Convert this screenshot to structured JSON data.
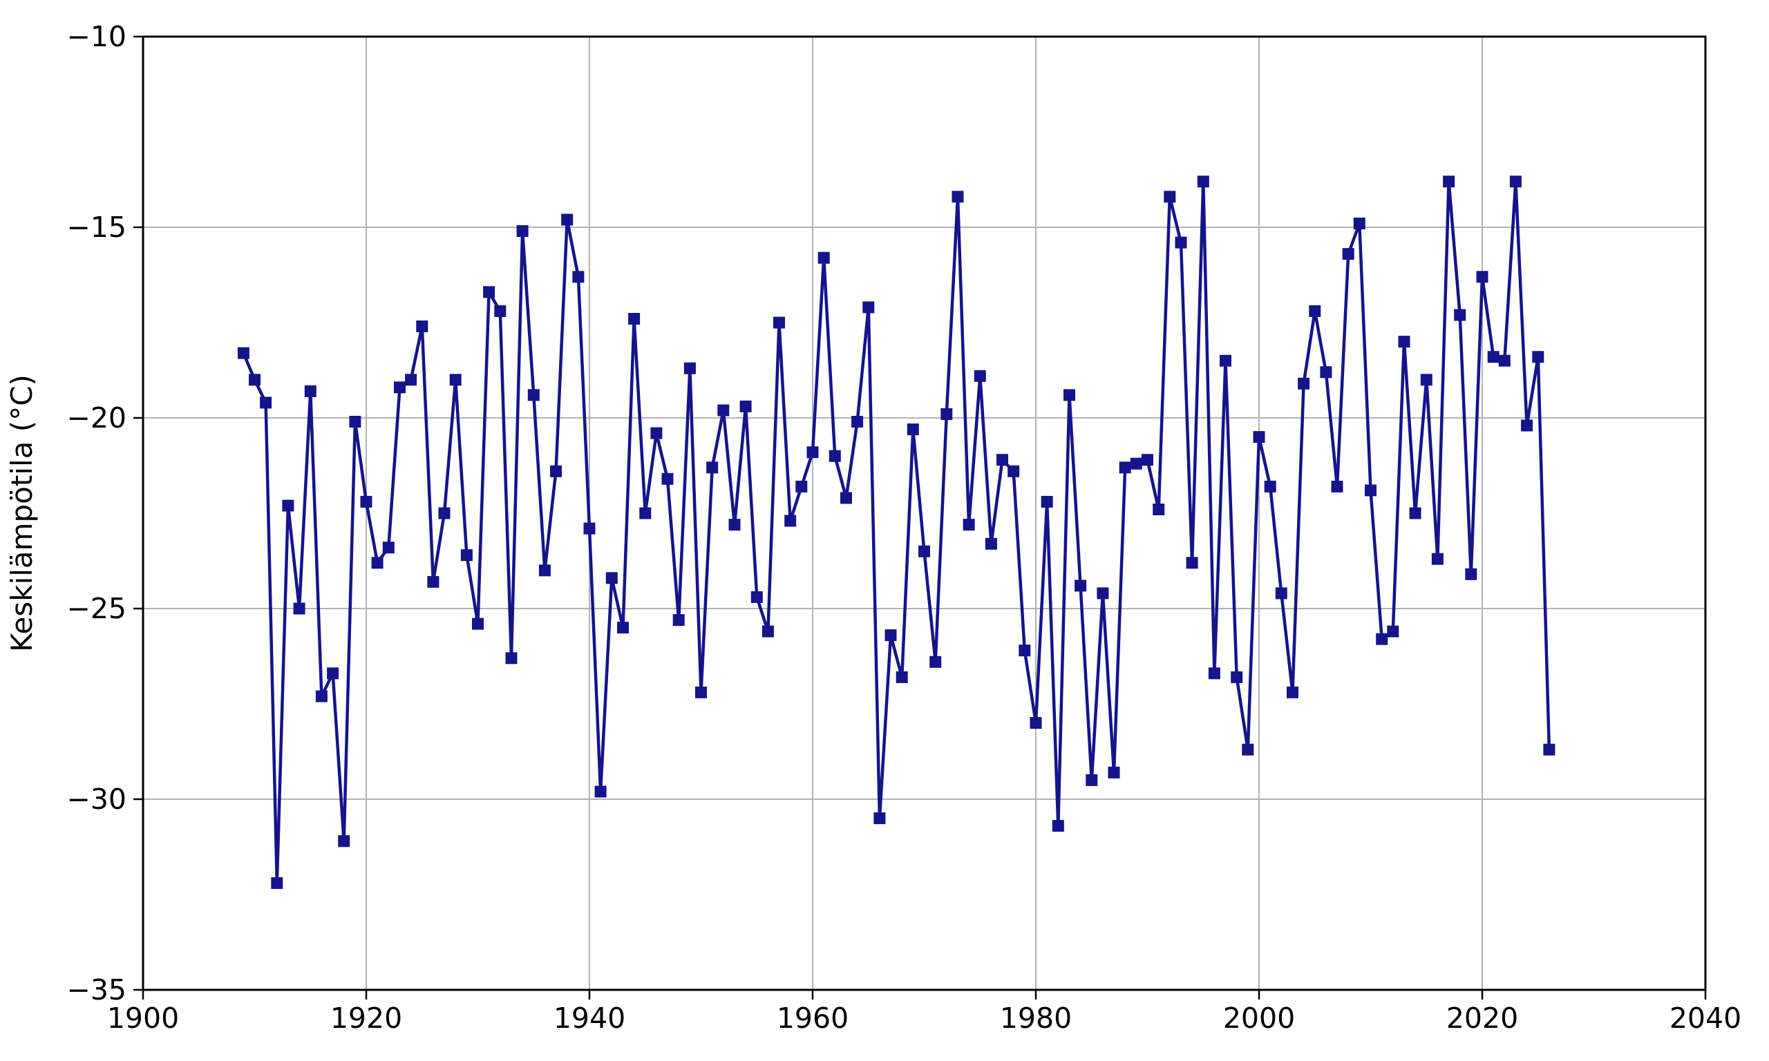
{
  "chart_data": {
    "type": "line",
    "title": "",
    "xlabel": "",
    "ylabel": "Keskilämpötila (°C)",
    "legend": false,
    "grid": true,
    "xlim": [
      1900,
      2040
    ],
    "ylim": [
      -35,
      -10
    ],
    "x_ticks": [
      1900,
      1920,
      1940,
      1960,
      1980,
      2000,
      2020,
      2040
    ],
    "x_tick_labels": [
      "1900",
      "1920",
      "1940",
      "1960",
      "1980",
      "2000",
      "2020",
      "2040"
    ],
    "y_ticks": [
      -10,
      -15,
      -20,
      -25,
      -30,
      -35
    ],
    "y_tick_labels": [
      "−10",
      "−15",
      "−20",
      "−25",
      "−30",
      "−35"
    ],
    "marker": "square",
    "line_color": "#14148c",
    "grid_color": "#b2b2b2",
    "spine_color": "#000000",
    "x": [
      1909,
      1910,
      1911,
      1912,
      1913,
      1914,
      1915,
      1916,
      1917,
      1918,
      1919,
      1920,
      1921,
      1922,
      1923,
      1924,
      1925,
      1926,
      1927,
      1928,
      1929,
      1930,
      1931,
      1932,
      1933,
      1934,
      1935,
      1936,
      1937,
      1938,
      1939,
      1940,
      1941,
      1942,
      1943,
      1944,
      1945,
      1946,
      1947,
      1948,
      1949,
      1950,
      1951,
      1952,
      1953,
      1954,
      1955,
      1956,
      1957,
      1958,
      1959,
      1960,
      1961,
      1962,
      1963,
      1964,
      1965,
      1966,
      1967,
      1968,
      1969,
      1970,
      1971,
      1972,
      1973,
      1974,
      1975,
      1976,
      1977,
      1978,
      1979,
      1980,
      1981,
      1982,
      1983,
      1984,
      1985,
      1986,
      1987,
      1988,
      1989,
      1990,
      1991,
      1992,
      1993,
      1994,
      1995,
      1996,
      1997,
      1998,
      1999,
      2000,
      2001,
      2002,
      2003,
      2004,
      2005,
      2006,
      2007,
      2008,
      2009,
      2010,
      2011,
      2012,
      2013,
      2014,
      2015,
      2016,
      2017,
      2018,
      2019,
      2020,
      2021,
      2022,
      2023,
      2024,
      2025,
      2026
    ],
    "series": [
      {
        "name": "Keskilämpötila",
        "values": [
          -18.3,
          -19.0,
          -19.6,
          -32.2,
          -22.3,
          -25.0,
          -19.3,
          -27.3,
          -26.7,
          -31.1,
          -20.1,
          -22.2,
          -23.8,
          -23.4,
          -19.2,
          -19.0,
          -17.6,
          -24.3,
          -22.5,
          -19.0,
          -23.6,
          -25.4,
          -16.7,
          -17.2,
          -26.3,
          -15.1,
          -19.4,
          -24.0,
          -21.4,
          -14.8,
          -16.3,
          -22.9,
          -29.8,
          -24.2,
          -25.5,
          -17.4,
          -22.5,
          -20.4,
          -21.6,
          -25.3,
          -18.7,
          -27.2,
          -21.3,
          -19.8,
          -22.8,
          -19.7,
          -24.7,
          -25.6,
          -17.5,
          -22.7,
          -21.8,
          -20.9,
          -15.8,
          -21.0,
          -22.1,
          -20.1,
          -17.1,
          -30.5,
          -25.7,
          -26.8,
          -20.3,
          -23.5,
          -26.4,
          -19.9,
          -14.2,
          -22.8,
          -18.9,
          -23.3,
          -21.1,
          -21.4,
          -26.1,
          -28.0,
          -22.2,
          -30.7,
          -19.4,
          -24.4,
          -29.5,
          -24.6,
          -29.3,
          -21.3,
          -21.2,
          -21.1,
          -22.4,
          -14.2,
          -15.4,
          -23.8,
          -13.8,
          -26.7,
          -18.5,
          -26.8,
          -28.7,
          -20.5,
          -21.8,
          -24.6,
          -27.2,
          -19.1,
          -17.2,
          -18.8,
          -21.8,
          -15.7,
          -14.9,
          -21.9,
          -25.8,
          -25.6,
          -18.0,
          -22.5,
          -19.0,
          -23.7,
          -13.8,
          -17.3,
          -24.1,
          -16.3,
          -18.4,
          -18.5,
          -13.8,
          -20.2,
          -18.4,
          -28.7
        ]
      }
    ]
  }
}
